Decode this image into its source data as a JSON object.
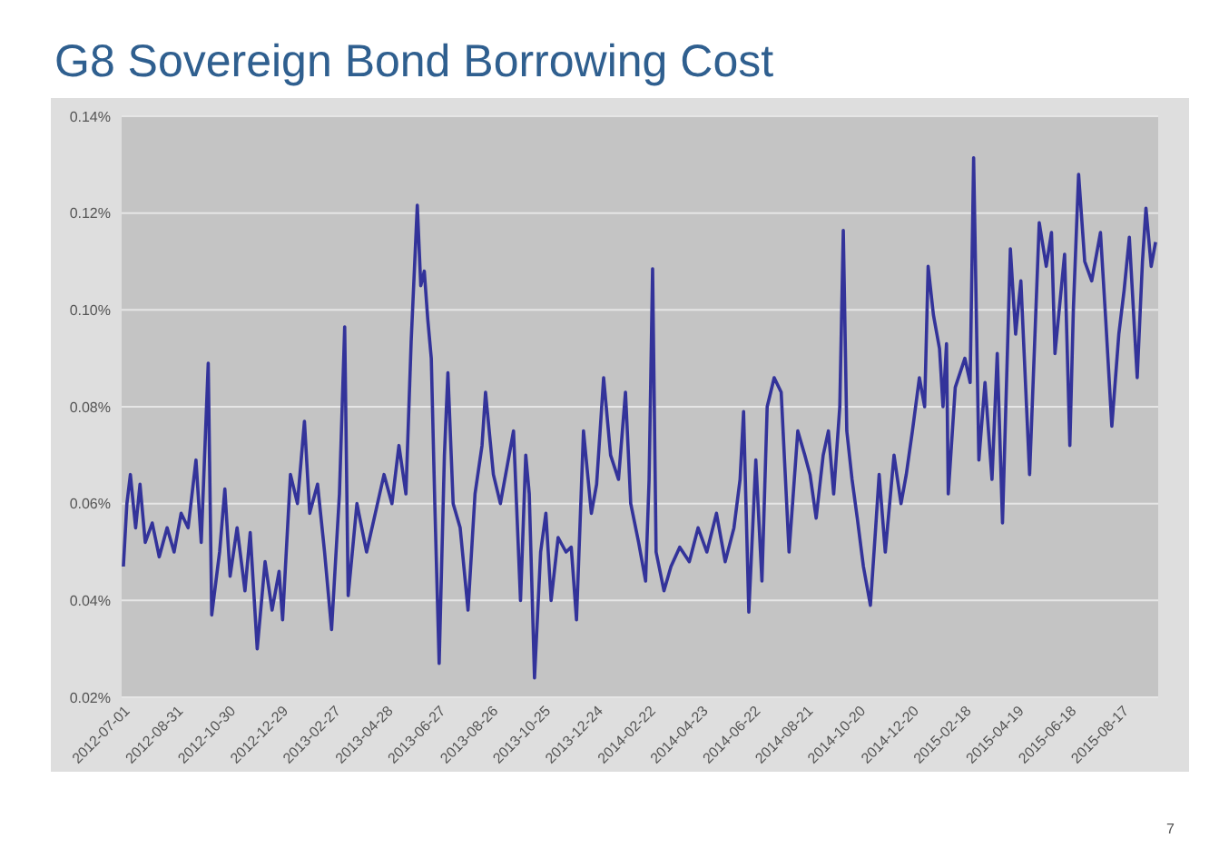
{
  "chart_data": {
    "type": "line",
    "title": "G8 Sovereign Bond Borrowing Cost",
    "annotations": [
      "7"
    ],
    "x": [
      "2012-06-27",
      "2012-07-01",
      "2012-07-05",
      "2012-07-11",
      "2012-07-16",
      "2012-07-22",
      "2012-07-30",
      "2012-08-07",
      "2012-08-16",
      "2012-08-24",
      "2012-09-01",
      "2012-09-09",
      "2012-09-18",
      "2012-09-24",
      "2012-10-02",
      "2012-10-06",
      "2012-10-15",
      "2012-10-21",
      "2012-10-27",
      "2012-11-04",
      "2012-11-13",
      "2012-11-19",
      "2012-11-27",
      "2012-12-06",
      "2012-12-14",
      "2012-12-22",
      "2012-12-26",
      "2013-01-04",
      "2013-01-12",
      "2013-01-20",
      "2013-01-26",
      "2013-02-04",
      "2013-02-12",
      "2013-02-20",
      "2013-03-01",
      "2013-03-07",
      "2013-03-11",
      "2013-03-21",
      "2013-04-01",
      "2013-04-11",
      "2013-04-21",
      "2013-04-30",
      "2013-05-08",
      "2013-05-16",
      "2013-05-22",
      "2013-05-29",
      "2013-06-02",
      "2013-06-06",
      "2013-06-10",
      "2013-06-14",
      "2013-06-18",
      "2013-06-23",
      "2013-06-29",
      "2013-07-03",
      "2013-07-09",
      "2013-07-17",
      "2013-07-26",
      "2013-08-03",
      "2013-08-11",
      "2013-08-15",
      "2013-08-24",
      "2013-09-01",
      "2013-09-09",
      "2013-09-16",
      "2013-09-24",
      "2013-09-30",
      "2013-10-04",
      "2013-10-10",
      "2013-10-17",
      "2013-10-23",
      "2013-10-29",
      "2013-11-06",
      "2013-11-15",
      "2013-11-21",
      "2013-11-27",
      "2013-12-05",
      "2013-12-14",
      "2013-12-20",
      "2013-12-28",
      "2014-01-05",
      "2014-01-14",
      "2014-01-22",
      "2014-01-28",
      "2014-02-06",
      "2014-02-14",
      "2014-02-18",
      "2014-02-22",
      "2014-02-26",
      "2014-03-07",
      "2014-03-15",
      "2014-03-25",
      "2014-04-05",
      "2014-04-15",
      "2014-04-25",
      "2014-05-06",
      "2014-05-16",
      "2014-05-26",
      "2014-06-02",
      "2014-06-06",
      "2014-06-12",
      "2014-06-20",
      "2014-06-27",
      "2014-07-03",
      "2014-07-11",
      "2014-07-19",
      "2014-07-28",
      "2014-08-07",
      "2014-08-15",
      "2014-08-21",
      "2014-08-28",
      "2014-09-05",
      "2014-09-11",
      "2014-09-17",
      "2014-09-24",
      "2014-09-28",
      "2014-10-02",
      "2014-10-08",
      "2014-10-14",
      "2014-10-21",
      "2014-10-29",
      "2014-11-04",
      "2014-11-08",
      "2014-11-15",
      "2014-11-25",
      "2014-12-03",
      "2014-12-09",
      "2014-12-16",
      "2014-12-24",
      "2014-12-30",
      "2015-01-03",
      "2015-01-09",
      "2015-01-16",
      "2015-01-20",
      "2015-01-24",
      "2015-01-26",
      "2015-02-03",
      "2015-02-14",
      "2015-02-20",
      "2015-02-24",
      "2015-03-02",
      "2015-03-09",
      "2015-03-17",
      "2015-03-23",
      "2015-03-29",
      "2015-04-07",
      "2015-04-13",
      "2015-04-19",
      "2015-04-29",
      "2015-05-10",
      "2015-05-18",
      "2015-05-24",
      "2015-05-28",
      "2015-06-08",
      "2015-06-14",
      "2015-06-18",
      "2015-06-24",
      "2015-07-01",
      "2015-07-09",
      "2015-07-19",
      "2015-07-25",
      "2015-08-01",
      "2015-08-09",
      "2015-08-15",
      "2015-08-21",
      "2015-08-30",
      "2015-09-05",
      "2015-09-09",
      "2015-09-15",
      "2015-09-20"
    ],
    "series": [
      {
        "color": "#33339a",
        "values": [
          0.047,
          0.06,
          0.066,
          0.055,
          0.064,
          0.052,
          0.056,
          0.049,
          0.055,
          0.05,
          0.058,
          0.055,
          0.069,
          0.052,
          0.089,
          0.037,
          0.05,
          0.063,
          0.045,
          0.055,
          0.042,
          0.054,
          0.03,
          0.048,
          0.038,
          0.046,
          0.036,
          0.066,
          0.06,
          0.077,
          0.058,
          0.064,
          0.05,
          0.034,
          0.062,
          0.0965,
          0.041,
          0.06,
          0.05,
          0.058,
          0.066,
          0.06,
          0.072,
          0.062,
          0.0935,
          0.1216,
          0.105,
          0.108,
          0.098,
          0.09,
          0.06,
          0.027,
          0.07,
          0.087,
          0.06,
          0.055,
          0.038,
          0.062,
          0.072,
          0.083,
          0.066,
          0.06,
          0.068,
          0.075,
          0.04,
          0.07,
          0.062,
          0.024,
          0.05,
          0.058,
          0.04,
          0.053,
          0.05,
          0.051,
          0.036,
          0.075,
          0.058,
          0.064,
          0.086,
          0.07,
          0.065,
          0.083,
          0.06,
          0.052,
          0.044,
          0.065,
          0.1085,
          0.05,
          0.042,
          0.047,
          0.051,
          0.048,
          0.055,
          0.05,
          0.058,
          0.048,
          0.055,
          0.065,
          0.079,
          0.0376,
          0.069,
          0.044,
          0.08,
          0.086,
          0.083,
          0.05,
          0.075,
          0.07,
          0.066,
          0.057,
          0.07,
          0.075,
          0.062,
          0.08,
          0.1164,
          0.075,
          0.065,
          0.057,
          0.047,
          0.039,
          0.055,
          0.066,
          0.05,
          0.07,
          0.06,
          0.066,
          0.075,
          0.086,
          0.08,
          0.109,
          0.099,
          0.092,
          0.08,
          0.093,
          0.062,
          0.084,
          0.09,
          0.085,
          0.1314,
          0.069,
          0.085,
          0.065,
          0.091,
          0.056,
          0.1126,
          0.095,
          0.106,
          0.066,
          0.118,
          0.109,
          0.116,
          0.091,
          0.1115,
          0.072,
          0.1,
          0.128,
          0.11,
          0.106,
          0.116,
          0.098,
          0.076,
          0.095,
          0.104,
          0.115,
          0.086,
          0.11,
          0.121,
          0.109,
          0.114
        ]
      }
    ],
    "xlim": [
      "2012-06-25",
      "2015-09-23"
    ],
    "xticks": [
      "2012-07-01",
      "2012-08-31",
      "2012-10-30",
      "2012-12-29",
      "2013-02-27",
      "2013-04-28",
      "2013-06-27",
      "2013-08-26",
      "2013-10-25",
      "2013-12-24",
      "2014-02-22",
      "2014-04-23",
      "2014-06-22",
      "2014-08-21",
      "2014-10-20",
      "2014-12-20",
      "2015-02-18",
      "2015-04-19",
      "2015-06-18",
      "2015-08-17"
    ],
    "ylim": [
      0.02,
      0.14
    ],
    "yticks": [
      {
        "value": 0.02,
        "label": "0.02%"
      },
      {
        "value": 0.04,
        "label": "0.04%"
      },
      {
        "value": 0.06,
        "label": "0.06%"
      },
      {
        "value": 0.08,
        "label": "0.08%"
      },
      {
        "value": 0.1,
        "label": "0.10%"
      },
      {
        "value": 0.12,
        "label": "0.12%"
      },
      {
        "value": 0.14,
        "label": "0.14%"
      }
    ],
    "grid": "y",
    "marker": "none",
    "line_style": "solid"
  }
}
